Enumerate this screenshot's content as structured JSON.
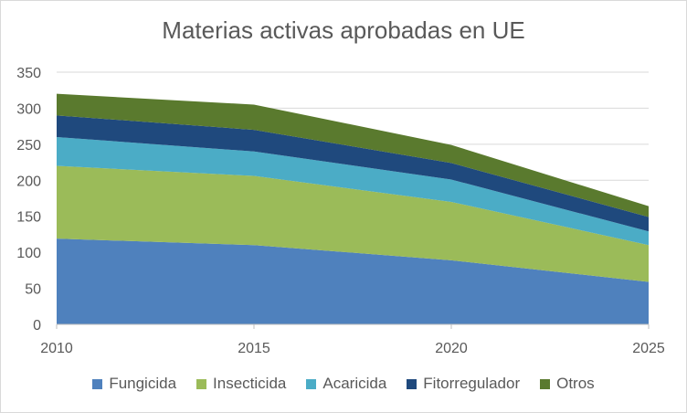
{
  "chart_data": {
    "type": "area",
    "title": "Materias activas aprobadas en UE",
    "xlabel": "",
    "ylabel": "",
    "categories": [
      "2010",
      "2015",
      "2020",
      "2025"
    ],
    "y_ticks": [
      "0",
      "50",
      "100",
      "150",
      "200",
      "250",
      "300",
      "350"
    ],
    "ylim": [
      0,
      350
    ],
    "stacked": true,
    "grid": true,
    "legend_position": "bottom",
    "series": [
      {
        "name": "Fungicida",
        "values": [
          119,
          110,
          89,
          59
        ],
        "color": "#4f81bd"
      },
      {
        "name": "Insecticida",
        "values": [
          101,
          96,
          81,
          51
        ],
        "color": "#9bbb59"
      },
      {
        "name": "Acaricida",
        "values": [
          40,
          34,
          31,
          19
        ],
        "color": "#4bacc6"
      },
      {
        "name": "Fitorregulador",
        "values": [
          30,
          30,
          23,
          20
        ],
        "color": "#1f497d"
      },
      {
        "name": "Otros",
        "values": [
          30,
          35,
          25,
          15
        ],
        "color": "#5a7a2e"
      }
    ]
  }
}
